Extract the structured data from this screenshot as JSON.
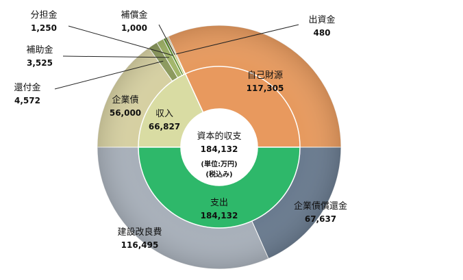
{
  "chart_data": {
    "type": "pie",
    "subtype": "doughnut-two-ring",
    "center": {
      "title": "資本的収支",
      "total": "184,132",
      "unit": "(単位:万円)",
      "tax": "(税込み)"
    },
    "inner_ring": [
      {
        "name": "収入",
        "value": 66827,
        "value_label": "66,827",
        "color": "#d9dca3"
      },
      {
        "name": "自己財源",
        "value": 117305,
        "value_label": "117,305",
        "color": "#e8995e"
      },
      {
        "name": "支出",
        "value": 184132,
        "value_label": "184,132",
        "color": "#2eb86a"
      }
    ],
    "outer_ring": [
      {
        "name": "自己財源",
        "value": 117305,
        "value_label": "117,305",
        "color": "#e69a5f"
      },
      {
        "name": "企業債償還金",
        "value": 67637,
        "value_label": "67,637",
        "color": "#6a7b8f"
      },
      {
        "name": "建設改良費",
        "value": 116495,
        "value_label": "116,495",
        "color": "#a8b0ba"
      },
      {
        "name": "企業債",
        "value": 56000,
        "value_label": "56,000",
        "color": "#d6d0a2"
      },
      {
        "name": "還付金",
        "value": 4572,
        "value_label": "4,572",
        "color": "#8c9a5e"
      },
      {
        "name": "補助金",
        "value": 3525,
        "value_label": "3,525",
        "color": "#a3b76a"
      },
      {
        "name": "分担金",
        "value": 1250,
        "value_label": "1,250",
        "color": "#5f8f2e"
      },
      {
        "name": "補償金",
        "value": 1000,
        "value_label": "1,000",
        "color": "#c8c46a"
      },
      {
        "name": "出資金",
        "value": 480,
        "value_label": "480",
        "color": "#7a7f3a"
      }
    ]
  }
}
